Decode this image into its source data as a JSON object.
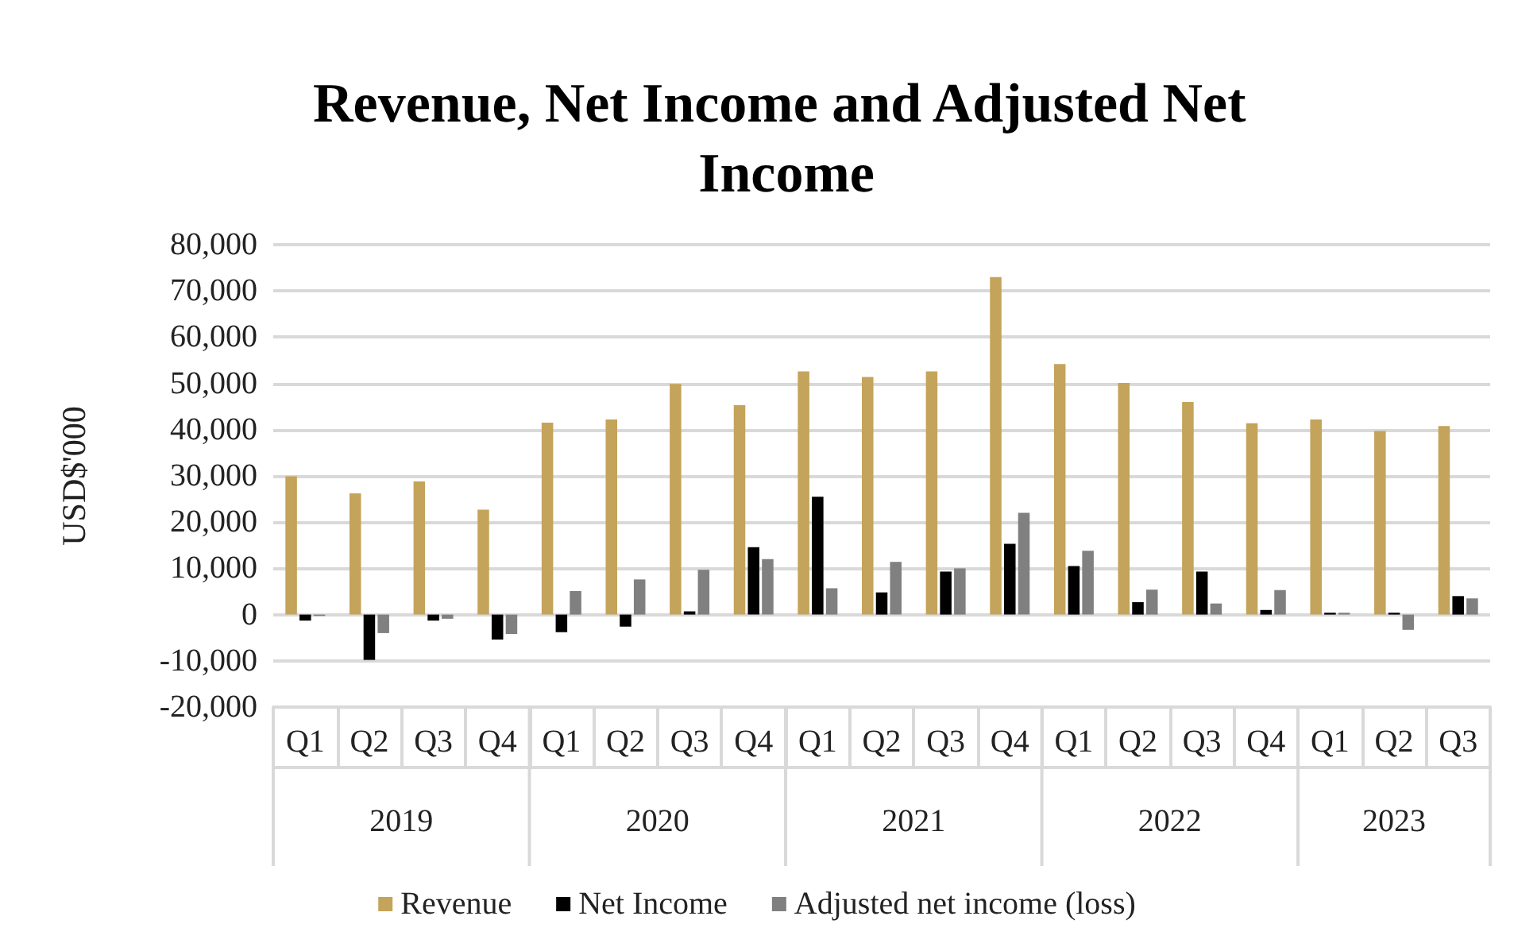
{
  "chart_data": {
    "type": "bar",
    "title": "Revenue, Net Income and Adjusted Net Income",
    "ylabel": "USD$'000",
    "categories": [
      "Q1",
      "Q2",
      "Q3",
      "Q4",
      "Q1",
      "Q2",
      "Q3",
      "Q4",
      "Q1",
      "Q2",
      "Q3",
      "Q4",
      "Q1",
      "Q2",
      "Q3",
      "Q4",
      "Q1",
      "Q2",
      "Q3"
    ],
    "annotations": [
      "2019",
      "2020",
      "2021",
      "2022",
      "2023"
    ],
    "series": [
      {
        "name": "Revenue",
        "color": "#c4a35a",
        "values": [
          29900,
          26200,
          28800,
          22700,
          41500,
          42200,
          49900,
          45300,
          52600,
          51400,
          52600,
          73000,
          54200,
          50100,
          46000,
          41400,
          42200,
          39700,
          40800
        ]
      },
      {
        "name": "Net Income",
        "color": "#000000",
        "values": [
          -1300,
          -9800,
          -1300,
          -5400,
          -3800,
          -2600,
          700,
          14600,
          25500,
          4800,
          9300,
          15300,
          10500,
          2700,
          9300,
          1000,
          400,
          400,
          4000
        ]
      },
      {
        "name": "Adjusted net income (loss)",
        "color": "#808080",
        "values": [
          -300,
          -4000,
          -900,
          -4200,
          5100,
          7600,
          9700,
          12000,
          5700,
          11400,
          10000,
          22000,
          13800,
          5400,
          2400,
          5300,
          400,
          -3300,
          3500
        ]
      }
    ],
    "ylim": [
      -20000,
      80000
    ],
    "yticks": [
      {
        "value": -20000,
        "label": "-20,000"
      },
      {
        "value": -10000,
        "label": "-10,000"
      },
      0,
      {
        "value": 10000,
        "label": "10,000"
      },
      {
        "value": 20000,
        "label": "20,000"
      },
      {
        "value": 30000,
        "label": "30,000"
      },
      {
        "value": 40000,
        "label": "40,000"
      },
      {
        "value": 50000,
        "label": "50,000"
      },
      {
        "value": 60000,
        "label": "60,000"
      },
      {
        "value": 70000,
        "label": "70,000"
      },
      {
        "value": 80000,
        "label": "80,000"
      }
    ],
    "grid": "y",
    "legend": "bottom"
  }
}
